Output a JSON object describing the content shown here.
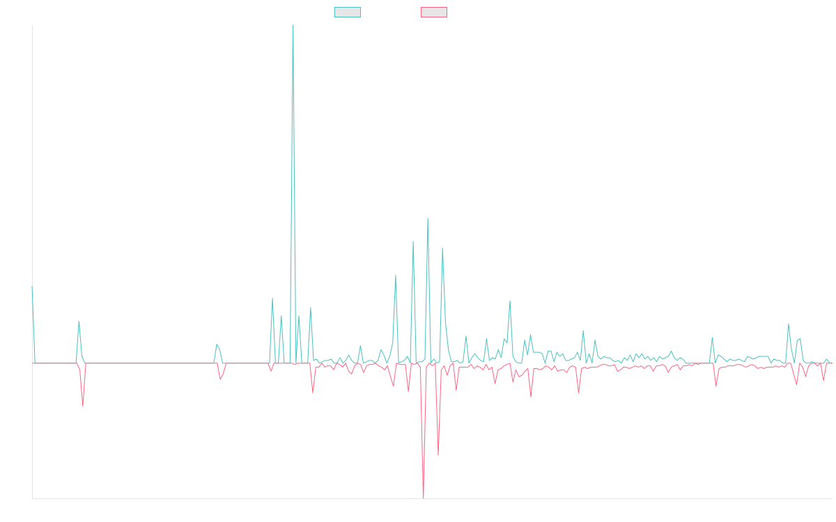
{
  "chart_data": {
    "type": "line",
    "title": "",
    "xlabel": "",
    "ylabel": "",
    "ylim": [
      -1.0,
      2.5
    ],
    "grid": false,
    "legend_position": "top-center",
    "series": [
      {
        "name": "",
        "color": "#4bc0c0",
        "values": [
          0.57,
          0,
          0,
          0,
          0,
          0,
          0,
          0,
          0,
          0,
          0,
          0,
          0,
          0,
          0,
          0,
          0.31,
          0.05,
          0,
          0,
          0,
          0,
          0,
          0,
          0,
          0,
          0,
          0,
          0,
          0,
          0,
          0,
          0,
          0,
          0,
          0,
          0,
          0,
          0,
          0,
          0,
          0,
          0,
          0,
          0,
          0,
          0,
          0,
          0,
          0,
          0,
          0,
          0,
          0,
          0,
          0,
          0,
          0,
          0,
          0,
          0,
          0,
          0,
          0.14,
          0.1,
          0,
          0,
          0,
          0,
          0,
          0,
          0,
          0,
          0,
          0,
          0,
          0,
          0,
          0,
          0,
          0,
          0,
          0.48,
          0,
          0,
          0.35,
          0,
          0,
          0,
          2.5,
          0,
          0.35,
          0,
          0,
          0,
          0.41,
          0.02,
          0.03,
          0,
          0.01,
          0.02,
          0.02,
          0.03,
          0,
          0,
          0.04,
          0,
          0.02,
          0.06,
          0.02,
          0,
          0,
          0.13,
          0,
          0.01,
          0.02,
          0.02,
          0,
          0.02,
          0.1,
          0.06,
          0,
          0.05,
          0.15,
          0.65,
          0,
          0.01,
          0.02,
          0.05,
          0,
          0.9,
          0,
          0.01,
          0.01,
          0.03,
          1.07,
          0,
          0.03,
          0,
          0.01,
          0.85,
          0.3,
          0.1,
          0.01,
          0.01,
          0.02,
          0,
          0.01,
          0.2,
          0,
          0.04,
          0.07,
          0.04,
          0.02,
          0.01,
          0.18,
          0.02,
          0.04,
          0.03,
          0.1,
          0.04,
          0.18,
          0.15,
          0.46,
          0.05,
          0.01,
          0,
          0,
          0.17,
          0.06,
          0.21,
          0.08,
          0.08,
          0.08,
          0.07,
          0,
          0.09,
          0.09,
          0.01,
          0.08,
          0.05,
          0.07,
          0.02,
          0.02,
          0.03,
          0.04,
          0.08,
          0.02,
          0.24,
          0,
          0.07,
          0,
          0.17,
          0.05,
          0.03,
          0.05,
          0.04,
          0.04,
          0.02,
          0.01,
          0.02,
          0,
          0.04,
          0.02,
          0.06,
          0.01,
          0.07,
          0.04,
          0.07,
          0.03,
          0.05,
          0.02,
          0.04,
          0.01,
          0.05,
          0.03,
          0.04,
          0.05,
          0.09,
          0.04,
          0.02,
          0.04,
          0.03,
          0,
          0,
          0,
          0,
          0,
          0,
          0,
          0,
          0,
          0.19,
          0,
          0.06,
          0.05,
          0.03,
          0.01,
          0.03,
          0.02,
          0.02,
          0.03,
          0.02,
          0.01,
          0.05,
          0.04,
          0.03,
          0.04,
          0.05,
          0.05,
          0.05,
          0.05,
          0,
          0.03,
          0.02,
          0.02,
          0,
          0,
          0.29,
          0.1,
          0,
          0.17,
          0.18,
          0.02,
          0,
          0,
          0.01,
          0,
          0,
          0,
          0,
          0.03,
          0,
          0
        ]
      },
      {
        "name": "",
        "color": "#ff6384",
        "values": [
          0,
          0,
          0,
          0,
          0,
          0,
          0,
          0,
          0,
          0,
          0,
          0,
          0,
          0,
          0,
          0,
          -0.05,
          -0.32,
          0,
          0,
          0,
          0,
          0,
          0,
          0,
          0,
          0,
          0,
          0,
          0,
          0,
          0,
          0,
          0,
          0,
          0,
          0,
          0,
          0,
          0,
          0,
          0,
          0,
          0,
          0,
          0,
          0,
          0,
          0,
          0,
          0,
          0,
          0,
          0,
          0,
          0,
          0,
          0,
          0,
          0,
          0,
          0,
          0,
          -0.12,
          -0.08,
          0,
          0,
          0,
          0,
          0,
          0,
          0,
          0,
          0,
          0,
          0,
          0,
          0,
          0,
          0,
          -0.06,
          0,
          0,
          0,
          0,
          0,
          0,
          0,
          -0.01,
          0,
          0,
          0,
          0,
          0,
          -0.22,
          -0.03,
          -0.03,
          0,
          -0.03,
          -0.02,
          -0.02,
          -0.05,
          0,
          -0.01,
          -0.03,
          0,
          -0.06,
          -0.08,
          -0.02,
          0,
          -0.01,
          -0.07,
          -0.02,
          -0.01,
          -0.01,
          0,
          -0.02,
          -0.03,
          -0.05,
          -0.02,
          -0.1,
          -0.17,
          0,
          -0.01,
          -0.01,
          -0.01,
          -0.21,
          0,
          -0.01,
          0,
          -0.03,
          -1.0,
          -0.03,
          0,
          -0.02,
          0,
          -0.68,
          -0.05,
          -0.02,
          -0.09,
          -0.02,
          0,
          -0.2,
          -0.03,
          -0.03,
          -0.03,
          -0.03,
          -0.01,
          -0.04,
          -0.02,
          -0.03,
          -0.05,
          -0.01,
          -0.05,
          -0.03,
          -0.15,
          -0.05,
          -0.04,
          -0.02,
          -0.01,
          0,
          -0.14,
          -0.05,
          -0.1,
          -0.09,
          -0.06,
          -0.04,
          -0.25,
          -0.04,
          -0.04,
          -0.05,
          -0.04,
          -0.02,
          -0.03,
          -0.05,
          -0.02,
          -0.06,
          -0.05,
          -0.05,
          -0.07,
          -0.03,
          -0.02,
          -0.03,
          -0.22,
          -0.04,
          -0.03,
          -0.04,
          -0.03,
          -0.03,
          -0.03,
          -0.02,
          -0.01,
          -0.01,
          -0.02,
          -0.02,
          -0.01,
          -0.06,
          -0.05,
          -0.03,
          -0.03,
          -0.04,
          -0.03,
          -0.02,
          -0.03,
          -0.02,
          -0.04,
          -0.02,
          -0.02,
          -0.06,
          -0.02,
          -0.02,
          -0.01,
          -0.02,
          -0.07,
          -0.03,
          -0.02,
          -0.01,
          -0.05,
          -0.02,
          -0.02,
          -0.01,
          -0.02,
          0,
          -0.01,
          0,
          0,
          0,
          0,
          0,
          -0.17,
          -0.04,
          -0.03,
          -0.03,
          -0.02,
          -0.02,
          -0.02,
          -0.01,
          -0.01,
          -0.02,
          -0.03,
          -0.02,
          -0.01,
          -0.02,
          -0.04,
          -0.03,
          -0.04,
          -0.03,
          -0.03,
          -0.03,
          -0.02,
          -0.03,
          -0.02,
          -0.03,
          0,
          0,
          -0.08,
          -0.16,
          0,
          -0.03,
          -0.1,
          -0.02,
          0,
          0,
          -0.02,
          0,
          -0.13,
          0,
          0,
          0
        ]
      }
    ]
  }
}
